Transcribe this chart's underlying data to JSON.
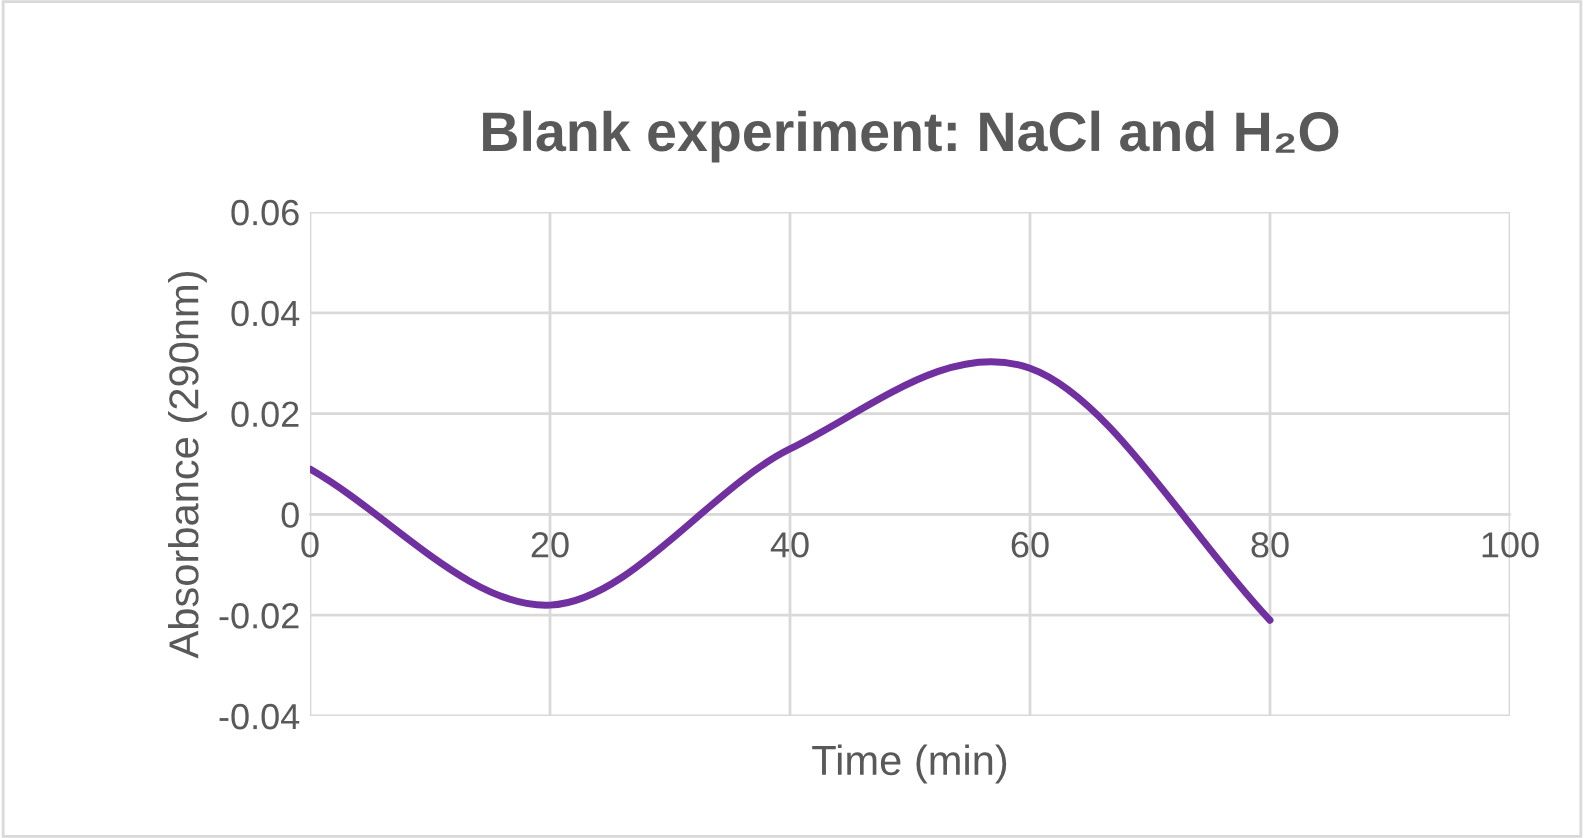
{
  "chart_data": {
    "type": "line",
    "title": "Blank experiment: NaCl and H₂O",
    "xlabel": "Time (min)",
    "ylabel": "Absorbance (290nm)",
    "x": [
      0,
      20,
      40,
      60,
      80
    ],
    "series": [
      {
        "color": "#7030a0",
        "values": [
          0.009,
          -0.018,
          0.013,
          0.029,
          -0.021
        ]
      }
    ],
    "xlim": [
      0,
      100
    ],
    "xticks": [
      0,
      20,
      40,
      60,
      80,
      100
    ],
    "ylim": [
      -0.04,
      0.06
    ],
    "yticks": [
      {
        "value": -0.04,
        "label": "-0.04"
      },
      {
        "value": -0.02,
        "label": "-0.02"
      },
      {
        "value": 0,
        "label": "0"
      },
      {
        "value": 0.02,
        "label": "0.02"
      },
      {
        "value": 0.04,
        "label": "0.04"
      },
      {
        "value": 0.06,
        "label": "0.06"
      }
    ],
    "grid": true,
    "legend": false,
    "marker": "none",
    "line_style": "solid"
  }
}
